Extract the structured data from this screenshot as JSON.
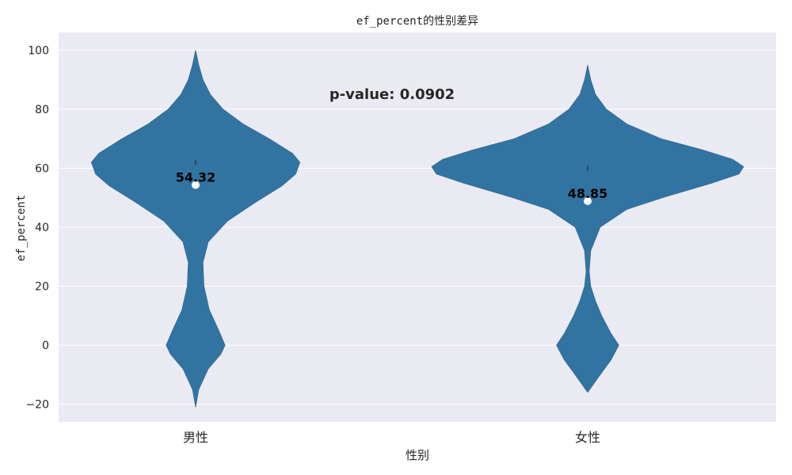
{
  "chart_data": {
    "type": "violin",
    "title": "ef_percent的性别差异",
    "xlabel": "性别",
    "ylabel": "ef_percent",
    "categories": [
      "男性",
      "女性"
    ],
    "ylim": [
      -26,
      106
    ],
    "yticks": [
      -20,
      0,
      20,
      40,
      60,
      80,
      100
    ],
    "grid": true,
    "violin_color": "#3274a1",
    "background_color": "#eaeaf2",
    "means": [
      54.32,
      48.85
    ],
    "mean_labels": [
      "54.32",
      "48.85"
    ],
    "medians": [
      62,
      60
    ],
    "annotation": "p-value: 0.0902",
    "violins": [
      {
        "category": "男性",
        "support": [
          -21,
          100
        ],
        "density": [
          [
            -21,
            0
          ],
          [
            -15,
            0.03
          ],
          [
            -8,
            0.12
          ],
          [
            -3,
            0.24
          ],
          [
            0,
            0.28
          ],
          [
            5,
            0.22
          ],
          [
            12,
            0.13
          ],
          [
            20,
            0.08
          ],
          [
            28,
            0.07
          ],
          [
            35,
            0.12
          ],
          [
            42,
            0.3
          ],
          [
            48,
            0.55
          ],
          [
            54,
            0.82
          ],
          [
            58,
            0.95
          ],
          [
            62,
            0.99
          ],
          [
            65,
            0.92
          ],
          [
            70,
            0.7
          ],
          [
            75,
            0.45
          ],
          [
            80,
            0.26
          ],
          [
            85,
            0.14
          ],
          [
            90,
            0.07
          ],
          [
            95,
            0.03
          ],
          [
            100,
            0
          ]
        ]
      },
      {
        "category": "女性",
        "support": [
          -16,
          95
        ],
        "density": [
          [
            -16,
            0
          ],
          [
            -10,
            0.08
          ],
          [
            -5,
            0.15
          ],
          [
            0,
            0.2
          ],
          [
            4,
            0.15
          ],
          [
            10,
            0.09
          ],
          [
            15,
            0.05
          ],
          [
            20,
            0.02
          ],
          [
            25,
            0.01
          ],
          [
            32,
            0.02
          ],
          [
            40,
            0.08
          ],
          [
            46,
            0.25
          ],
          [
            50,
            0.48
          ],
          [
            55,
            0.8
          ],
          [
            58,
            0.97
          ],
          [
            60.5,
            1.0
          ],
          [
            63,
            0.93
          ],
          [
            66,
            0.75
          ],
          [
            70,
            0.47
          ],
          [
            75,
            0.25
          ],
          [
            80,
            0.12
          ],
          [
            85,
            0.05
          ],
          [
            90,
            0.02
          ],
          [
            95,
            0
          ]
        ]
      }
    ]
  }
}
